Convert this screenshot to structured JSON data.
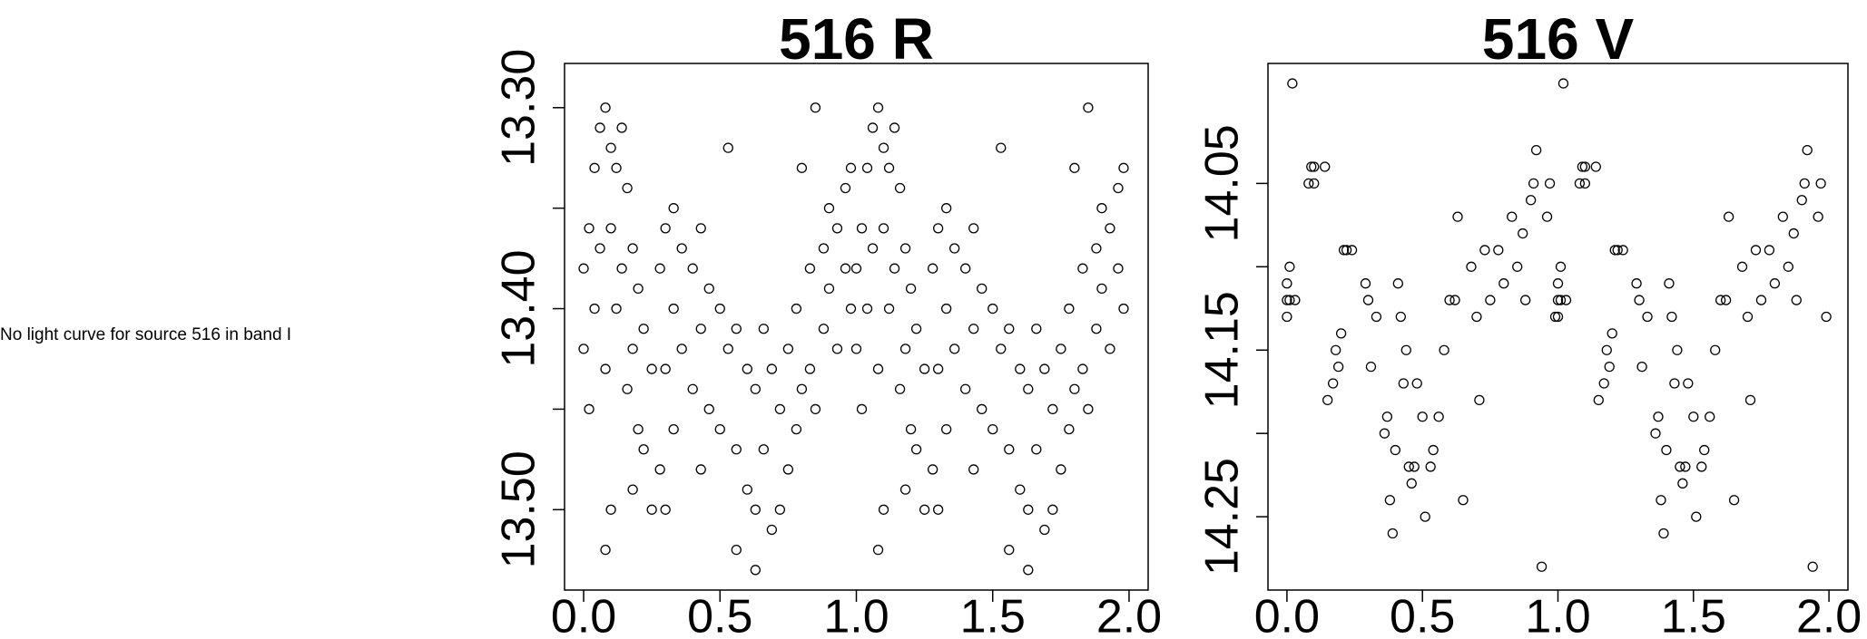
{
  "note": "No light curve for source 516 in band I",
  "chart_data": [
    {
      "type": "scatter",
      "title": "516 R",
      "color": "#000000",
      "xlim": [
        -0.07,
        2.07
      ],
      "ylim": [
        13.54,
        13.278
      ],
      "xticks": [
        {
          "value": 0,
          "label": "0.0"
        },
        {
          "value": 0.5,
          "label": "0.5"
        },
        {
          "value": 1,
          "label": "1.0"
        },
        {
          "value": 1.5,
          "label": "1.5"
        },
        {
          "value": 2,
          "label": "2.0"
        }
      ],
      "yticks": [
        {
          "value": 13.3,
          "label": "13.30"
        },
        {
          "value": 13.35,
          "label": null
        },
        {
          "value": 13.4,
          "label": "13.40"
        },
        {
          "value": 13.45,
          "label": null
        },
        {
          "value": 13.5,
          "label": "13.50"
        }
      ],
      "x": [
        0,
        0,
        0.02,
        0.02,
        0.04,
        0.04,
        0.06,
        0.06,
        0.08,
        0.08,
        0.08,
        0.1,
        0.1,
        0.1,
        0.12,
        0.12,
        0.14,
        0.14,
        0.16,
        0.16,
        0.18,
        0.18,
        0.18,
        0.2,
        0.2,
        0.22,
        0.22,
        0.25,
        0.25,
        0.28,
        0.28,
        0.3,
        0.3,
        0.3,
        0.33,
        0.33,
        0.33,
        0.36,
        0.36,
        0.4,
        0.4,
        0.43,
        0.43,
        0.43,
        0.46,
        0.46,
        0.5,
        0.5,
        0.53,
        0.53,
        0.56,
        0.56,
        0.56,
        0.6,
        0.6,
        0.63,
        0.63,
        0.63,
        0.66,
        0.66,
        0.69,
        0.69,
        0.72,
        0.72,
        0.75,
        0.75,
        0.78,
        0.78,
        0.8,
        0.8,
        0.83,
        0.83,
        0.85,
        0.85,
        0.88,
        0.88,
        0.9,
        0.9,
        0.93,
        0.93,
        0.96,
        0.96,
        0.98,
        0.98,
        1,
        1,
        1.02,
        1.02,
        1.04,
        1.04,
        1.06,
        1.06,
        1.08,
        1.08,
        1.08,
        1.1,
        1.1,
        1.1,
        1.12,
        1.12,
        1.14,
        1.14,
        1.16,
        1.16,
        1.18,
        1.18,
        1.18,
        1.2,
        1.2,
        1.22,
        1.22,
        1.25,
        1.25,
        1.28,
        1.28,
        1.3,
        1.3,
        1.3,
        1.33,
        1.33,
        1.33,
        1.36,
        1.36,
        1.4,
        1.4,
        1.43,
        1.43,
        1.43,
        1.46,
        1.46,
        1.5,
        1.5,
        1.53,
        1.53,
        1.56,
        1.56,
        1.56,
        1.6,
        1.6,
        1.63,
        1.63,
        1.63,
        1.66,
        1.66,
        1.69,
        1.69,
        1.72,
        1.72,
        1.75,
        1.75,
        1.78,
        1.78,
        1.8,
        1.8,
        1.83,
        1.83,
        1.85,
        1.85,
        1.88,
        1.88,
        1.9,
        1.9,
        1.93,
        1.93,
        1.96,
        1.96,
        1.98,
        1.98
      ],
      "y": [
        13.38,
        13.42,
        13.36,
        13.45,
        13.33,
        13.4,
        13.31,
        13.37,
        13.3,
        13.43,
        13.52,
        13.32,
        13.36,
        13.5,
        13.33,
        13.4,
        13.31,
        13.38,
        13.34,
        13.44,
        13.37,
        13.42,
        13.49,
        13.39,
        13.46,
        13.41,
        13.47,
        13.43,
        13.5,
        13.38,
        13.48,
        13.36,
        13.43,
        13.5,
        13.35,
        13.4,
        13.46,
        13.37,
        13.42,
        13.38,
        13.44,
        13.36,
        13.41,
        13.48,
        13.39,
        13.45,
        13.4,
        13.46,
        13.32,
        13.42,
        13.41,
        13.47,
        13.52,
        13.43,
        13.49,
        13.44,
        13.5,
        13.53,
        13.41,
        13.47,
        13.43,
        13.51,
        13.45,
        13.5,
        13.42,
        13.48,
        13.4,
        13.46,
        13.33,
        13.44,
        13.38,
        13.43,
        13.3,
        13.45,
        13.37,
        13.41,
        13.35,
        13.39,
        13.36,
        13.42,
        13.34,
        13.38,
        13.33,
        13.4,
        13.38,
        13.42,
        13.36,
        13.45,
        13.33,
        13.4,
        13.31,
        13.37,
        13.3,
        13.43,
        13.52,
        13.32,
        13.36,
        13.5,
        13.33,
        13.4,
        13.31,
        13.38,
        13.34,
        13.44,
        13.37,
        13.42,
        13.49,
        13.39,
        13.46,
        13.41,
        13.47,
        13.43,
        13.5,
        13.38,
        13.48,
        13.36,
        13.43,
        13.5,
        13.35,
        13.4,
        13.46,
        13.37,
        13.42,
        13.38,
        13.44,
        13.36,
        13.41,
        13.48,
        13.39,
        13.45,
        13.4,
        13.46,
        13.32,
        13.42,
        13.41,
        13.47,
        13.52,
        13.43,
        13.49,
        13.44,
        13.5,
        13.53,
        13.41,
        13.47,
        13.43,
        13.51,
        13.45,
        13.5,
        13.42,
        13.48,
        13.4,
        13.46,
        13.33,
        13.44,
        13.38,
        13.43,
        13.3,
        13.45,
        13.37,
        13.41,
        13.35,
        13.39,
        13.36,
        13.42,
        13.34,
        13.38,
        13.33,
        13.4
      ]
    },
    {
      "type": "scatter",
      "title": "516 V",
      "color": "#000000",
      "xlim": [
        -0.07,
        2.07
      ],
      "ylim": [
        14.294,
        13.978
      ],
      "xticks": [
        {
          "value": 0,
          "label": "0.0"
        },
        {
          "value": 0.5,
          "label": "0.5"
        },
        {
          "value": 1,
          "label": "1.0"
        },
        {
          "value": 1.5,
          "label": "1.5"
        },
        {
          "value": 2,
          "label": "2.0"
        }
      ],
      "yticks": [
        {
          "value": 14.05,
          "label": "14.05"
        },
        {
          "value": 14.1,
          "label": null
        },
        {
          "value": 14.15,
          "label": "14.15"
        },
        {
          "value": 14.2,
          "label": null
        },
        {
          "value": 14.25,
          "label": "14.25"
        }
      ],
      "x": [
        0,
        0,
        0,
        0.01,
        0.01,
        0.02,
        0.03,
        0.08,
        0.09,
        0.1,
        0.1,
        0.14,
        0.15,
        0.17,
        0.18,
        0.19,
        0.2,
        0.21,
        0.22,
        0.24,
        0.29,
        0.3,
        0.31,
        0.33,
        0.36,
        0.37,
        0.38,
        0.39,
        0.4,
        0.41,
        0.42,
        0.43,
        0.44,
        0.45,
        0.46,
        0.47,
        0.48,
        0.5,
        0.51,
        0.53,
        0.54,
        0.56,
        0.58,
        0.6,
        0.62,
        0.63,
        0.65,
        0.68,
        0.7,
        0.71,
        0.73,
        0.75,
        0.78,
        0.8,
        0.83,
        0.85,
        0.87,
        0.88,
        0.9,
        0.91,
        0.92,
        0.94,
        0.96,
        0.97,
        0.99,
        1,
        1,
        1,
        1.01,
        1.01,
        1.02,
        1.03,
        1.08,
        1.09,
        1.1,
        1.1,
        1.14,
        1.15,
        1.17,
        1.18,
        1.19,
        1.2,
        1.21,
        1.22,
        1.24,
        1.29,
        1.3,
        1.31,
        1.33,
        1.36,
        1.37,
        1.38,
        1.39,
        1.4,
        1.41,
        1.42,
        1.43,
        1.44,
        1.45,
        1.46,
        1.47,
        1.48,
        1.5,
        1.51,
        1.53,
        1.54,
        1.56,
        1.58,
        1.6,
        1.62,
        1.63,
        1.65,
        1.68,
        1.7,
        1.71,
        1.73,
        1.75,
        1.78,
        1.8,
        1.83,
        1.85,
        1.87,
        1.88,
        1.9,
        1.91,
        1.92,
        1.94,
        1.96,
        1.97,
        1.99
      ],
      "y": [
        14.11,
        14.12,
        14.13,
        14.1,
        14.12,
        13.99,
        14.12,
        14.05,
        14.04,
        14.04,
        14.05,
        14.04,
        14.18,
        14.17,
        14.15,
        14.16,
        14.14,
        14.09,
        14.09,
        14.09,
        14.11,
        14.12,
        14.16,
        14.13,
        14.2,
        14.19,
        14.24,
        14.26,
        14.21,
        14.11,
        14.13,
        14.17,
        14.15,
        14.22,
        14.23,
        14.22,
        14.17,
        14.19,
        14.25,
        14.22,
        14.21,
        14.19,
        14.15,
        14.12,
        14.12,
        14.07,
        14.24,
        14.1,
        14.13,
        14.18,
        14.09,
        14.12,
        14.09,
        14.11,
        14.07,
        14.1,
        14.08,
        14.12,
        14.06,
        14.05,
        14.03,
        14.28,
        14.07,
        14.05,
        14.13,
        14.11,
        14.12,
        14.13,
        14.1,
        14.12,
        13.99,
        14.12,
        14.05,
        14.04,
        14.04,
        14.05,
        14.04,
        14.18,
        14.17,
        14.15,
        14.16,
        14.14,
        14.09,
        14.09,
        14.09,
        14.11,
        14.12,
        14.16,
        14.13,
        14.2,
        14.19,
        14.24,
        14.26,
        14.21,
        14.11,
        14.13,
        14.17,
        14.15,
        14.22,
        14.23,
        14.22,
        14.17,
        14.19,
        14.25,
        14.22,
        14.21,
        14.19,
        14.15,
        14.12,
        14.12,
        14.07,
        14.24,
        14.1,
        14.13,
        14.18,
        14.09,
        14.12,
        14.09,
        14.11,
        14.07,
        14.1,
        14.08,
        14.12,
        14.06,
        14.05,
        14.03,
        14.28,
        14.07,
        14.05,
        14.13
      ]
    }
  ]
}
